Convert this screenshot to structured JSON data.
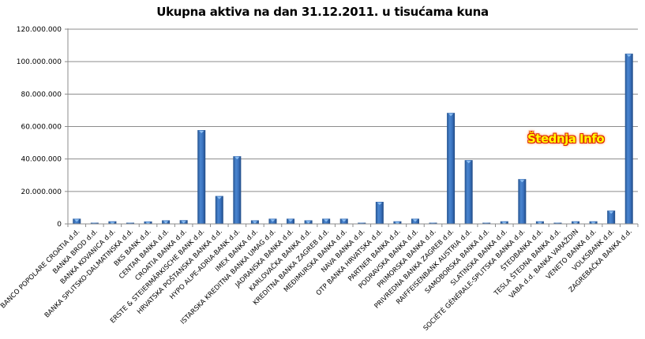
{
  "chart_data": {
    "type": "bar",
    "title": "Ukupna aktiva na dan 31.12.2011. u tisućama kuna",
    "xlabel": "",
    "ylabel": "",
    "ylim": [
      0,
      120000000
    ],
    "yticks": [
      "0",
      "20.000.000",
      "40.000.000",
      "60.000.000",
      "80.000.000",
      "100.000.000",
      "120.000.000"
    ],
    "grid": true,
    "legend": "none",
    "bar_color": "#3a70b8",
    "categories": [
      "BANCO POPOLARE CROATIA d.d.",
      "BANKA BROD d.d.",
      "BANKA KOVANICA d.d.",
      "BANKA SPLITSKO-DALMATINSKA d.d.",
      "BKS BANK d.d.",
      "CENTAR BANKA d.d.",
      "CROATIA BANKA d.d.",
      "ERSTE & STEIERMÄRKISCHE BANK d.d.",
      "HRVATSKA POŠTANSKA BANKA d.d.",
      "HYPO ALPE-ADRIA-BANK d.d.",
      "IMEX BANKA d.d.",
      "ISTARSKA KREDITNA BANKA UMAG d.d.",
      "JADRANSKA BANKA d.d.",
      "KARLOVAČKA BANKA d.d.",
      "KREDITNA BANKA ZAGREB d.d.",
      "MEĐIMURSKA BANKA d.d.",
      "NAVA BANKA d.d.",
      "OTP BANKA HRVATSKA d.d.",
      "PARTNER BANKA d.d.",
      "PODRAVSKA BANKA d.d.",
      "PRIMORSKA BANKA d.d.",
      "PRIVREDNA BANKA ZAGREB d.d.",
      "RAIFFEISENBANK AUSTRIA d.d.",
      "SAMOBORSKA BANKA d.d.",
      "SLATINSKA BANKA d.d.",
      "SOCIÉTÉ GÉNÉRALE-SPLITSKA BANKA d.d.",
      "ŠTEDBANKA d.d.",
      "TESLA ŠTEDNA BANKA d.d.",
      "VABA d.d. BANKA VARAŽDIN",
      "VENETO BANKA d.d.",
      "VOLKSBANK d.d.",
      "ZAGREBAČKA BANKA d.d."
    ],
    "values": [
      3200000,
      400000,
      1600000,
      300000,
      1500000,
      2200000,
      2300000,
      57800000,
      17200000,
      41700000,
      2200000,
      3200000,
      3200000,
      2200000,
      3200000,
      3200000,
      400000,
      13600000,
      1600000,
      3200000,
      400000,
      68400000,
      39300000,
      400000,
      1600000,
      27600000,
      1600000,
      400000,
      1600000,
      1600000,
      8200000,
      104900000
    ]
  },
  "watermark": {
    "text": "Štednja Info"
  }
}
